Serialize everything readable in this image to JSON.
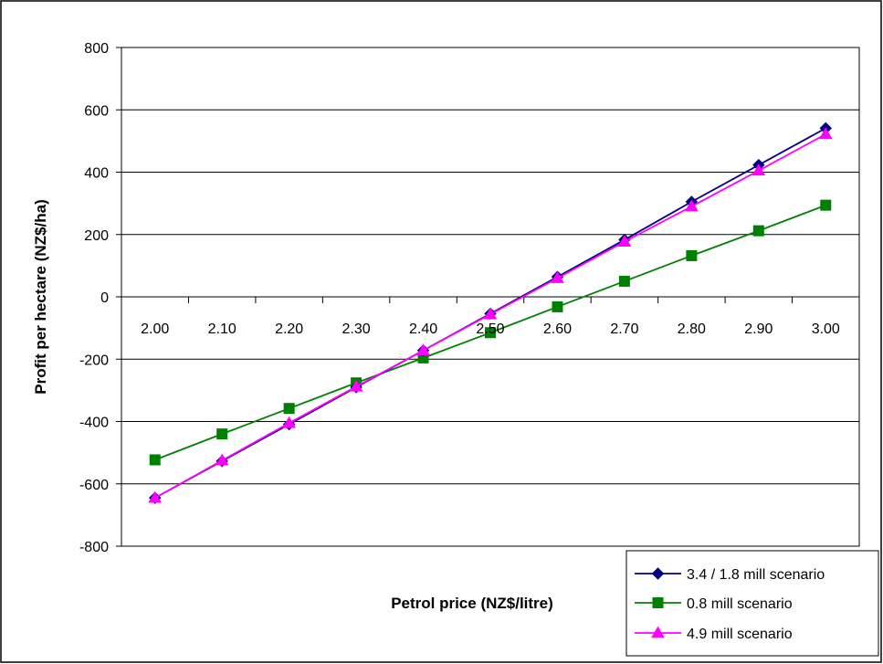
{
  "chart_data": {
    "type": "line",
    "xlabel": "Petrol price (NZ$/litre)",
    "ylabel": "Profit per hectare (NZ$/ha)",
    "categories": [
      "2.00",
      "2.10",
      "2.20",
      "2.30",
      "2.40",
      "2.50",
      "2.60",
      "2.70",
      "2.80",
      "2.90",
      "3.00"
    ],
    "ylim": [
      -800,
      800
    ],
    "yticks": [
      -800,
      -600,
      -400,
      -200,
      0,
      200,
      400,
      600,
      800
    ],
    "ytick_labels": [
      "-800",
      "-600",
      "-400",
      "-200",
      "0",
      "200",
      "400",
      "600",
      "800"
    ],
    "grid": "horizontal",
    "legend_placement": "bottom-right",
    "series": [
      {
        "name": "3.4 / 1.8 mill scenario",
        "color": "#000080",
        "marker": "diamond",
        "values": [
          -645,
          -527,
          -409,
          -290,
          -172,
          -54,
          64,
          183,
          305,
          423,
          541
        ]
      },
      {
        "name": "0.8 mill scenario",
        "color": "#008000",
        "marker": "square",
        "values": [
          -523,
          -440,
          -358,
          -276,
          -196,
          -115,
          -32,
          50,
          132,
          212,
          294
        ]
      },
      {
        "name": "4.9 mill scenario",
        "color": "#ff00ff",
        "marker": "triangle",
        "values": [
          -645,
          -525,
          -405,
          -288,
          -172,
          -56,
          60,
          177,
          290,
          405,
          522
        ]
      }
    ]
  }
}
